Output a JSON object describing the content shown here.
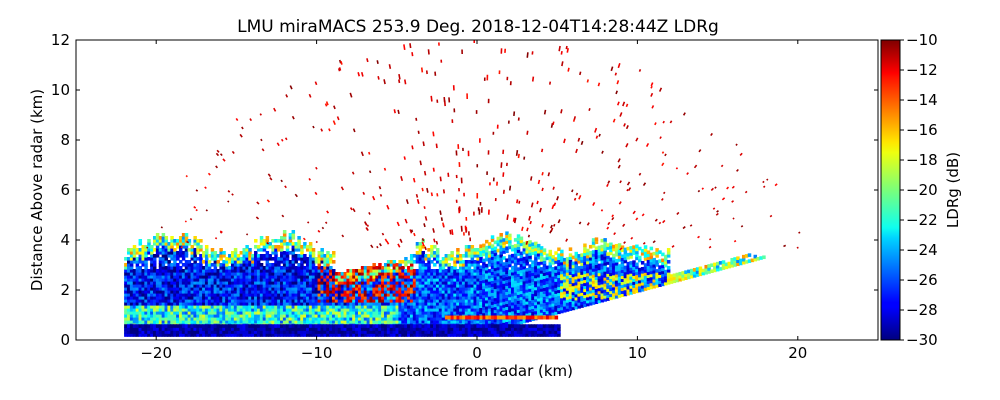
{
  "chart_data": {
    "type": "heatmap",
    "title": "LMU miraMACS 253.9 Deg. 2018-12-04T14:28:44Z  LDRg",
    "xlabel": "Distance from radar (km)",
    "ylabel": "Distance Above radar  (km)",
    "xlim": [
      -25,
      25
    ],
    "ylim": [
      0,
      12
    ],
    "xticks": [
      -20,
      -10,
      0,
      10,
      20
    ],
    "xtick_labels": [
      "−20",
      "−10",
      "0",
      "10",
      "20"
    ],
    "yticks": [
      0,
      2,
      4,
      6,
      8,
      10,
      12
    ],
    "ytick_labels": [
      "0",
      "2",
      "4",
      "6",
      "8",
      "10",
      "12"
    ],
    "colorbar": {
      "label": "LDRg (dB)",
      "range": [
        -30,
        -10
      ],
      "colormap": "jet",
      "ticks": [
        -10,
        -12,
        -14,
        -16,
        -18,
        -20,
        -22,
        -24,
        -26,
        -28,
        -30
      ],
      "tick_labels": [
        "−10",
        "−12",
        "−14",
        "−16",
        "−18",
        "−20",
        "−22",
        "−24",
        "−26",
        "−28",
        "−30"
      ]
    },
    "scan": {
      "azimuth_deg": 253.9,
      "max_range_km": 22,
      "left_edge_x_km": -22,
      "right_edge_reach_km": 18,
      "speckle_max_range_km": 22
    },
    "layers": [
      {
        "name": "ice cloud left",
        "x_range": [
          -22,
          -5
        ],
        "top_km": 4.0,
        "ldr_core": -28,
        "ldr_edge": -20
      },
      {
        "name": "ice cloud center",
        "x_range": [
          -5,
          15
        ],
        "top_km": 4.0,
        "ldr_core": -27,
        "ldr_edge": -22
      },
      {
        "name": "melting layer bright band",
        "height_km": 0.9,
        "x_range": [
          -2,
          5
        ],
        "ldr_db": -14
      },
      {
        "name": "near-ground return",
        "height_km": 0.3,
        "x_range": [
          -22,
          5
        ],
        "ldr_db": -29
      },
      {
        "name": "noise speckle",
        "height_range_km": [
          4,
          12
        ],
        "ldr_db": -10
      }
    ]
  }
}
